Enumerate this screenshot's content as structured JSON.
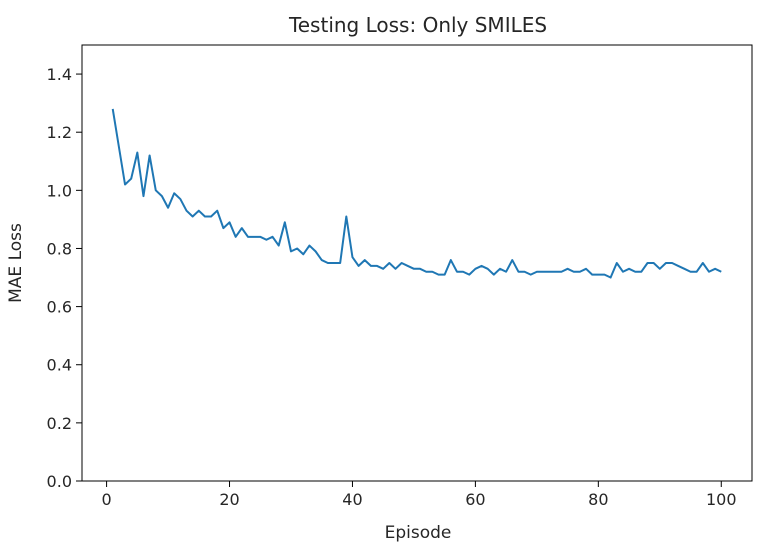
{
  "chart_data": {
    "type": "line",
    "title": "Testing Loss: Only SMILES",
    "xlabel": "Episode",
    "ylabel": "MAE Loss",
    "xlim": [
      -4.0,
      105.0
    ],
    "ylim": [
      0.0,
      1.5
    ],
    "xticks": [
      0,
      20,
      40,
      60,
      80,
      100
    ],
    "yticks": [
      0.0,
      0.2,
      0.4,
      0.6,
      0.8,
      1.0,
      1.2,
      1.4
    ],
    "xtick_labels": [
      "0",
      "20",
      "40",
      "60",
      "80",
      "100"
    ],
    "ytick_labels": [
      "0.0",
      "0.2",
      "0.4",
      "0.6",
      "0.8",
      "1.0",
      "1.2",
      "1.4"
    ],
    "grid": false,
    "line_color": "#1f77b4",
    "series": [
      {
        "x": [
          1,
          2,
          3,
          4,
          5,
          6,
          7,
          8,
          9,
          10,
          11,
          12,
          13,
          14,
          15,
          16,
          17,
          18,
          19,
          20,
          21,
          22,
          23,
          24,
          25,
          26,
          27,
          28,
          29,
          30,
          31,
          32,
          33,
          34,
          35,
          36,
          37,
          38,
          39,
          40,
          41,
          42,
          43,
          44,
          45,
          46,
          47,
          48,
          49,
          50,
          51,
          52,
          53,
          54,
          55,
          56,
          57,
          58,
          59,
          60,
          61,
          62,
          63,
          64,
          65,
          66,
          67,
          68,
          69,
          70,
          71,
          72,
          73,
          74,
          75,
          76,
          77,
          78,
          79,
          80,
          81,
          82,
          83,
          84,
          85,
          86,
          87,
          88,
          89,
          90,
          91,
          92,
          93,
          94,
          95,
          96,
          97,
          98,
          99,
          100
        ],
        "values": [
          1.28,
          1.15,
          1.02,
          1.04,
          1.13,
          0.98,
          1.12,
          1.0,
          0.98,
          0.94,
          0.99,
          0.97,
          0.93,
          0.91,
          0.93,
          0.91,
          0.91,
          0.93,
          0.87,
          0.89,
          0.84,
          0.87,
          0.84,
          0.84,
          0.84,
          0.83,
          0.84,
          0.81,
          0.89,
          0.79,
          0.8,
          0.78,
          0.81,
          0.79,
          0.76,
          0.75,
          0.75,
          0.75,
          0.91,
          0.77,
          0.74,
          0.76,
          0.74,
          0.74,
          0.73,
          0.75,
          0.73,
          0.75,
          0.74,
          0.73,
          0.73,
          0.72,
          0.72,
          0.71,
          0.71,
          0.76,
          0.72,
          0.72,
          0.71,
          0.73,
          0.74,
          0.73,
          0.71,
          0.73,
          0.72,
          0.76,
          0.72,
          0.72,
          0.71,
          0.72,
          0.72,
          0.72,
          0.72,
          0.72,
          0.73,
          0.72,
          0.72,
          0.73,
          0.71,
          0.71,
          0.71,
          0.7,
          0.75,
          0.72,
          0.73,
          0.72,
          0.72,
          0.75,
          0.75,
          0.73,
          0.75,
          0.75,
          0.74,
          0.73,
          0.72,
          0.72,
          0.75,
          0.72,
          0.73,
          0.72
        ]
      }
    ]
  }
}
